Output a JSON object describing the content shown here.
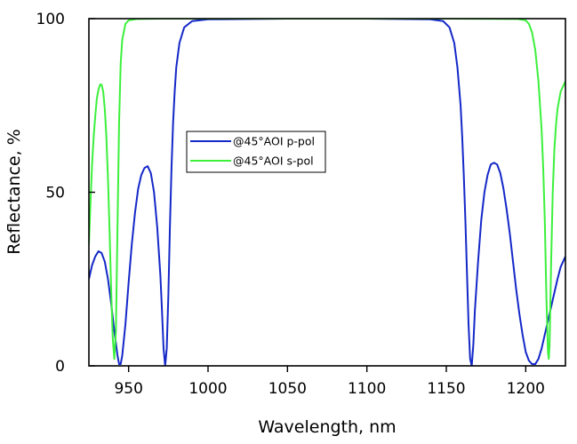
{
  "chart_data": {
    "type": "line",
    "title": "",
    "xlabel": "Wavelength, nm",
    "ylabel": "Reflectance, %",
    "xlim": [
      925,
      1225
    ],
    "ylim": [
      0,
      100
    ],
    "x_ticks": [
      950,
      1000,
      1050,
      1100,
      1150,
      1200
    ],
    "x_tick_labels": [
      "950",
      "1000",
      "1050",
      "1100",
      "1150",
      "1200"
    ],
    "y_ticks": [
      0,
      50,
      100
    ],
    "y_tick_labels": [
      "0",
      "50",
      "100"
    ],
    "grid": false,
    "legend_position": "upper-left-center",
    "series": [
      {
        "name": "@45°AOI p-pol",
        "color": "#1428c8",
        "points": [
          [
            925,
            25
          ],
          [
            927,
            29
          ],
          [
            929,
            31.5
          ],
          [
            931,
            33
          ],
          [
            933,
            32.5
          ],
          [
            935,
            30
          ],
          [
            937,
            25
          ],
          [
            939,
            18
          ],
          [
            941,
            10
          ],
          [
            943,
            3
          ],
          [
            944,
            0.5
          ],
          [
            945,
            0.5
          ],
          [
            946,
            3
          ],
          [
            948,
            12
          ],
          [
            950,
            24
          ],
          [
            952,
            35
          ],
          [
            954,
            44
          ],
          [
            956,
            51
          ],
          [
            958,
            55
          ],
          [
            960,
            57
          ],
          [
            962,
            57.5
          ],
          [
            964,
            55.5
          ],
          [
            966,
            50
          ],
          [
            968,
            40
          ],
          [
            970,
            26
          ],
          [
            971,
            16
          ],
          [
            972,
            5
          ],
          [
            973,
            0
          ],
          [
            974,
            5
          ],
          [
            975,
            20
          ],
          [
            976,
            40
          ],
          [
            977,
            57
          ],
          [
            978,
            70
          ],
          [
            979,
            79
          ],
          [
            980,
            86
          ],
          [
            982,
            93
          ],
          [
            985,
            97.5
          ],
          [
            990,
            99.3
          ],
          [
            1000,
            99.8
          ],
          [
            1050,
            100
          ],
          [
            1100,
            100
          ],
          [
            1140,
            99.8
          ],
          [
            1148,
            99.3
          ],
          [
            1152,
            97.5
          ],
          [
            1155,
            93
          ],
          [
            1157,
            86
          ],
          [
            1159,
            75
          ],
          [
            1160,
            66
          ],
          [
            1161,
            55
          ],
          [
            1162,
            42
          ],
          [
            1163,
            27
          ],
          [
            1164,
            12
          ],
          [
            1165,
            2
          ],
          [
            1166,
            0
          ],
          [
            1167,
            6
          ],
          [
            1168,
            16
          ],
          [
            1170,
            30
          ],
          [
            1172,
            42
          ],
          [
            1174,
            50
          ],
          [
            1176,
            55
          ],
          [
            1178,
            58
          ],
          [
            1180,
            58.5
          ],
          [
            1182,
            58
          ],
          [
            1184,
            55.5
          ],
          [
            1186,
            51
          ],
          [
            1188,
            45
          ],
          [
            1190,
            38
          ],
          [
            1192,
            30
          ],
          [
            1194,
            22
          ],
          [
            1196,
            15
          ],
          [
            1198,
            9
          ],
          [
            1200,
            4
          ],
          [
            1202,
            1.5
          ],
          [
            1204,
            0.5
          ],
          [
            1206,
            0.5
          ],
          [
            1208,
            2
          ],
          [
            1210,
            5
          ],
          [
            1212,
            9
          ],
          [
            1214,
            13
          ],
          [
            1216,
            17
          ],
          [
            1218,
            21
          ],
          [
            1220,
            25
          ],
          [
            1222,
            28.5
          ],
          [
            1225,
            31.5
          ]
        ]
      },
      {
        "name": "@45°AOI s-pol",
        "color": "#3cf03c",
        "points": [
          [
            925,
            35
          ],
          [
            926,
            47
          ],
          [
            927,
            58
          ],
          [
            928,
            66
          ],
          [
            929,
            72
          ],
          [
            930,
            77
          ],
          [
            931,
            79.5
          ],
          [
            932,
            81
          ],
          [
            933,
            81
          ],
          [
            934,
            79
          ],
          [
            935,
            74
          ],
          [
            936,
            66
          ],
          [
            937,
            54
          ],
          [
            938,
            39
          ],
          [
            939,
            22
          ],
          [
            940,
            8
          ],
          [
            941,
            2
          ],
          [
            942,
            10
          ],
          [
            943,
            40
          ],
          [
            944,
            70
          ],
          [
            945,
            87
          ],
          [
            946,
            94
          ],
          [
            948,
            98.5
          ],
          [
            950,
            99.5
          ],
          [
            955,
            99.9
          ],
          [
            970,
            100
          ],
          [
            1050,
            100
          ],
          [
            1150,
            100
          ],
          [
            1195,
            99.9
          ],
          [
            1200,
            99.5
          ],
          [
            1202,
            98.5
          ],
          [
            1204,
            96
          ],
          [
            1206,
            91
          ],
          [
            1208,
            82
          ],
          [
            1210,
            68
          ],
          [
            1211,
            57
          ],
          [
            1212,
            42
          ],
          [
            1213,
            20
          ],
          [
            1214,
            4
          ],
          [
            1214.5,
            2
          ],
          [
            1215,
            6
          ],
          [
            1216,
            30
          ],
          [
            1217,
            50
          ],
          [
            1218,
            62
          ],
          [
            1219,
            69
          ],
          [
            1220,
            74
          ],
          [
            1222,
            79
          ],
          [
            1225,
            82
          ]
        ]
      }
    ]
  }
}
